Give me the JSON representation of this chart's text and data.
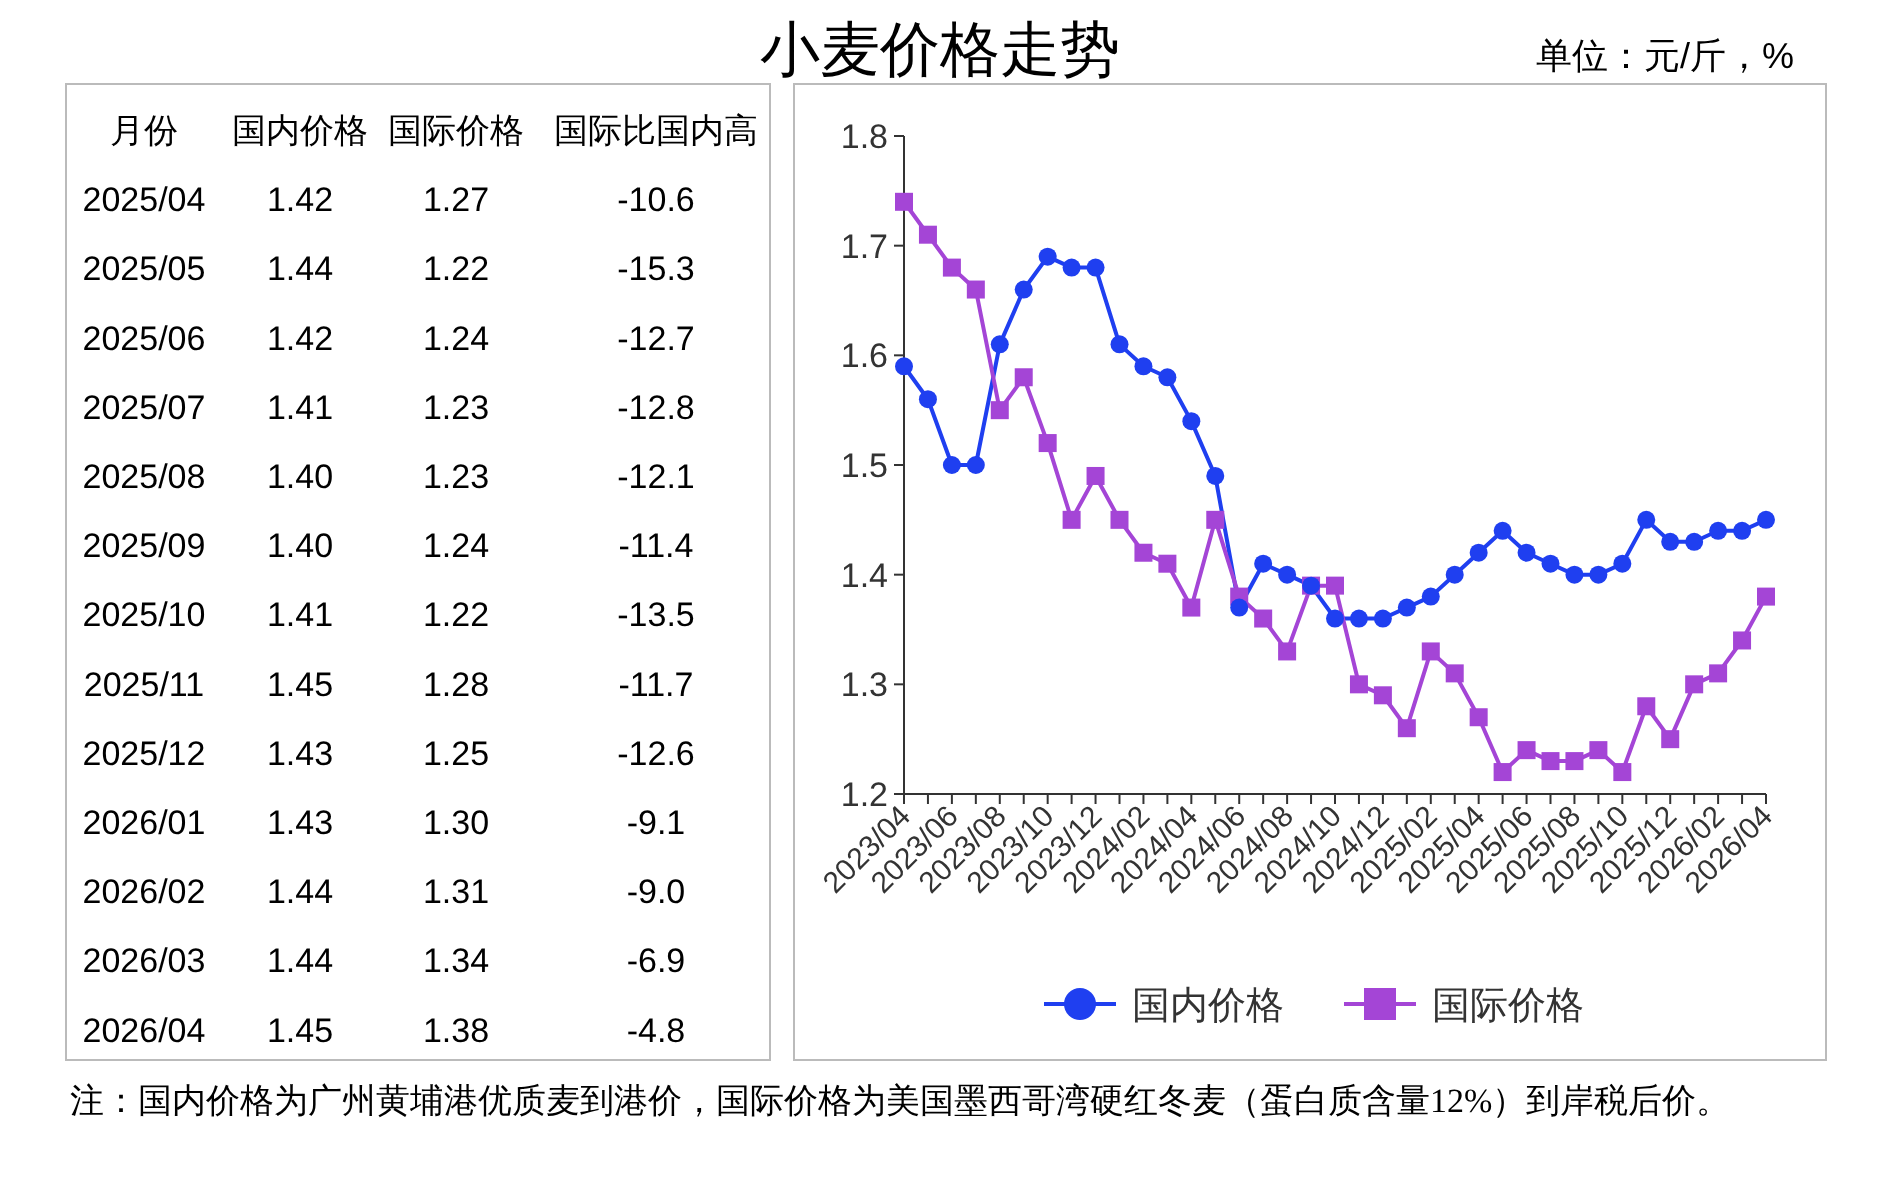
{
  "chart_data": [
    {
      "type": "other",
      "ylabel": "月份",
      "categories": [
        "国内价格",
        "国际价格",
        "国际比国内高"
      ],
      "y_categories": [
        "2025/04",
        "2025/05",
        "2025/06",
        "2025/07",
        "2025/08",
        "2025/09",
        "2025/10",
        "2025/11",
        "2025/12",
        "2026/01",
        "2026/02",
        "2026/03",
        "2026/04"
      ],
      "cell_labels": [
        [
          "1.42",
          "1.27",
          "-10.6"
        ],
        [
          "1.44",
          "1.22",
          "-15.3"
        ],
        [
          "1.42",
          "1.24",
          "-12.7"
        ],
        [
          "1.41",
          "1.23",
          "-12.8"
        ],
        [
          "1.40",
          "1.23",
          "-12.1"
        ],
        [
          "1.40",
          "1.24",
          "-11.4"
        ],
        [
          "1.41",
          "1.22",
          "-13.5"
        ],
        [
          "1.45",
          "1.28",
          "-11.7"
        ],
        [
          "1.43",
          "1.25",
          "-12.6"
        ],
        [
          "1.43",
          "1.30",
          "-9.1"
        ],
        [
          "1.44",
          "1.31",
          "-9.0"
        ],
        [
          "1.44",
          "1.34",
          "-6.9"
        ],
        [
          "1.45",
          "1.38",
          "-4.8"
        ]
      ]
    },
    {
      "type": "line",
      "title": "小麦价格走势",
      "subtitle": "单位：元/斤，%",
      "annotations": [
        "注：国内价格为广州黄埔港优质麦到港价，国际价格为美国墨西哥湾硬红冬麦（蛋白质含量12%）到岸税后价。"
      ],
      "categories": [
        "2023/04",
        null,
        "2023/06",
        null,
        "2023/08",
        null,
        "2023/10",
        null,
        "2023/12",
        null,
        "2024/02",
        null,
        "2024/04",
        null,
        "2024/06",
        null,
        "2024/08",
        null,
        "2024/10",
        null,
        "2024/12",
        null,
        "2025/02",
        null,
        "2025/04",
        null,
        "2025/06",
        null,
        "2025/08",
        null,
        "2025/10",
        null,
        "2025/12",
        null,
        "2026/02",
        null,
        "2026/04"
      ],
      "series": [
        {
          "name": "国内价格",
          "color": "#1f3ff0",
          "marker": "circle",
          "values": [
            1.59,
            1.56,
            1.5,
            1.5,
            1.61,
            1.66,
            1.69,
            1.68,
            1.68,
            1.61,
            1.59,
            1.58,
            1.54,
            1.49,
            1.37,
            1.41,
            1.4,
            1.39,
            1.36,
            1.36,
            1.36,
            1.37,
            1.38,
            1.4,
            1.42,
            1.44,
            1.42,
            1.41,
            1.4,
            1.4,
            1.41,
            1.45,
            1.43,
            1.43,
            1.44,
            1.44,
            1.45
          ]
        },
        {
          "name": "国际价格",
          "color": "#a445d6",
          "marker": "square",
          "values": [
            1.74,
            1.71,
            1.68,
            1.66,
            1.55,
            1.58,
            1.52,
            1.45,
            1.49,
            1.45,
            1.42,
            1.41,
            1.37,
            1.45,
            1.38,
            1.36,
            1.33,
            1.39,
            1.39,
            1.3,
            1.29,
            1.26,
            1.33,
            1.31,
            1.27,
            1.22,
            1.24,
            1.23,
            1.23,
            1.24,
            1.22,
            1.28,
            1.25,
            1.3,
            1.31,
            1.34,
            1.38
          ]
        }
      ],
      "ylim": [
        1.2,
        1.8
      ],
      "yticks": [
        1.2,
        1.3,
        1.4,
        1.5,
        1.6,
        1.7,
        1.8
      ],
      "legend": "bottom"
    }
  ]
}
